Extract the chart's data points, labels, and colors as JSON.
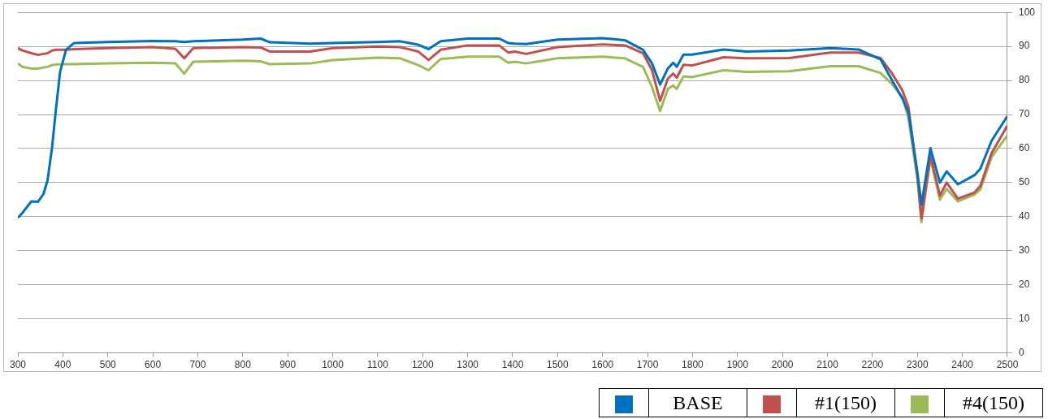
{
  "chart_data": {
    "type": "line",
    "x": [
      300,
      310,
      330,
      345,
      357,
      366,
      376,
      385,
      394,
      407,
      425,
      500,
      600,
      650,
      670,
      690,
      800,
      840,
      860,
      950,
      1000,
      1100,
      1150,
      1190,
      1213,
      1240,
      1300,
      1370,
      1390,
      1405,
      1430,
      1500,
      1600,
      1650,
      1690,
      1710,
      1728,
      1745,
      1757,
      1765,
      1780,
      1799,
      1869,
      1920,
      2015,
      2107,
      2169,
      2218,
      2243,
      2267,
      2280,
      2300,
      2309,
      2329,
      2350,
      2365,
      2390,
      2427,
      2440,
      2465,
      2500
    ],
    "series": [
      {
        "name": "BASE",
        "color": "#0070c0",
        "values": [
          39.7,
          41.1,
          44.5,
          44.4,
          46.7,
          50.7,
          60.3,
          72,
          82.6,
          89,
          91,
          91.3,
          91.6,
          91.5,
          91.3,
          91.5,
          92,
          92.3,
          91.2,
          90.8,
          91,
          91.3,
          91.5,
          90.5,
          89.2,
          91.5,
          92.3,
          92.3,
          91,
          90.8,
          90.7,
          92,
          92.4,
          91.8,
          89,
          85,
          78.8,
          83.5,
          85.2,
          84,
          87.6,
          87.6,
          89.1,
          88.5,
          88.8,
          89.5,
          89.1,
          86.2,
          80.2,
          74.6,
          70.6,
          53,
          43.5,
          60.1,
          50,
          53.3,
          49.5,
          52.2,
          54.1,
          62.3,
          69.5
        ]
      },
      {
        "name": "#1(150)",
        "color": "#c0504d",
        "values": [
          89.5,
          88.8,
          88,
          87.5,
          87.8,
          88,
          88.8,
          89,
          89,
          89,
          89.2,
          89.5,
          89.8,
          89.3,
          86.5,
          89.5,
          89.8,
          89.7,
          88.5,
          88.5,
          89.5,
          90,
          89.8,
          88.5,
          86,
          89,
          90.3,
          90.3,
          88.2,
          88.5,
          87.8,
          89.8,
          90.6,
          90.3,
          88,
          83,
          74,
          80.5,
          82,
          80.8,
          84.6,
          84.4,
          86.8,
          86.5,
          86.6,
          88.2,
          88.2,
          86.6,
          82.2,
          77,
          72.2,
          52,
          39.5,
          57.9,
          46.2,
          50,
          45.3,
          47.1,
          49,
          58.7,
          66.7
        ]
      },
      {
        "name": "#4(150)",
        "color": "#9bbb59",
        "values": [
          85,
          84,
          83.5,
          83.5,
          83.8,
          84,
          84.5,
          84.7,
          84.7,
          84.8,
          84.8,
          85,
          85.2,
          85,
          82,
          85.5,
          85.8,
          85.6,
          84.8,
          85,
          86,
          86.7,
          86.5,
          84.5,
          83,
          86.3,
          87,
          87,
          85.2,
          85.5,
          85,
          86.5,
          87,
          86.5,
          84,
          78,
          71,
          77.5,
          78.5,
          77.5,
          81.2,
          81,
          83,
          82.5,
          82.7,
          84.2,
          84.2,
          82.2,
          79,
          75,
          69,
          51,
          38.4,
          57,
          45,
          48.2,
          44.5,
          46.5,
          48,
          57.5,
          63.9
        ]
      }
    ],
    "xlim": [
      300,
      2500
    ],
    "xticks": [
      300,
      400,
      500,
      600,
      700,
      800,
      900,
      1000,
      1100,
      1200,
      1300,
      1400,
      1500,
      1600,
      1700,
      1800,
      1900,
      2000,
      2100,
      2200,
      2300,
      2400,
      2500
    ],
    "ylim": [
      0,
      100
    ],
    "yticks": [
      0,
      10,
      20,
      30,
      40,
      50,
      60,
      70,
      80,
      90,
      100
    ],
    "grid": "y",
    "legend": "bottom right",
    "marker": "none",
    "line_style": "solid"
  }
}
